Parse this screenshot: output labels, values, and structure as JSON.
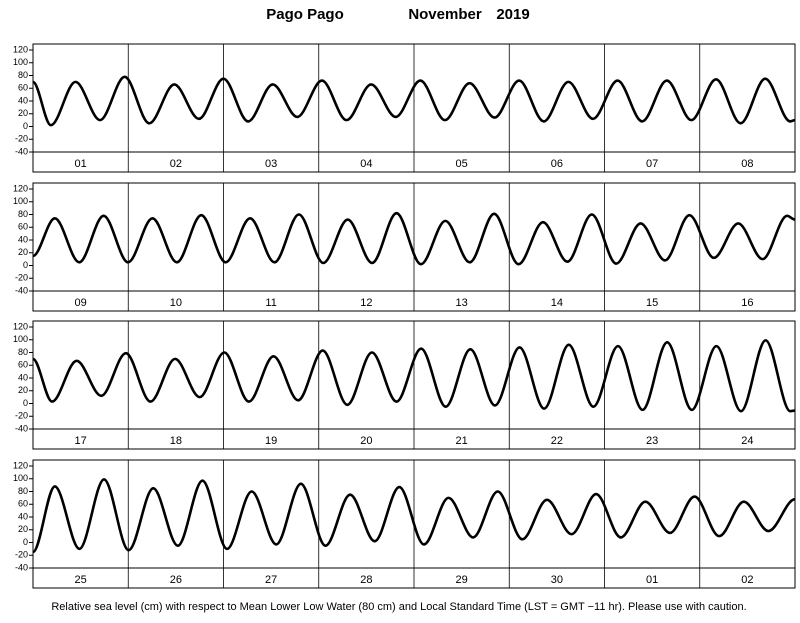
{
  "title": {
    "station": "Pago Pago",
    "month": "November",
    "year": "2019"
  },
  "footnote": "Relative sea level (cm) with respect to Mean Lower Low Water (80 cm) and Local Standard Time (LST = GMT −11 hr). Please use with caution.",
  "chart_data": [
    {
      "type": "line",
      "color": "#000000",
      "categories": [
        "01",
        "02",
        "03",
        "04",
        "05",
        "06",
        "07",
        "08"
      ],
      "x": [
        0,
        4.5,
        10.7,
        16.9,
        23.1,
        29.3,
        35.6,
        41.8,
        48.0,
        54.2,
        60.4,
        66.6,
        72.8,
        79.0,
        85.2,
        91.4,
        97.6,
        103.8,
        110.0,
        116.3,
        122.5,
        128.7,
        134.9,
        141.1,
        147.3,
        153.5,
        159.7,
        165.9,
        172.1,
        178.3,
        184.5,
        190.8,
        192
      ],
      "values": [
        70,
        2,
        70,
        10,
        78,
        5,
        66,
        12,
        75,
        8,
        66,
        15,
        72,
        10,
        66,
        15,
        72,
        10,
        68,
        14,
        72,
        8,
        70,
        12,
        72,
        8,
        72,
        10,
        74,
        5,
        75,
        8,
        10
      ],
      "xlim": [
        0,
        192
      ],
      "ylim": [
        -40,
        120
      ],
      "yticks": [
        -40,
        -20,
        0,
        20,
        40,
        60,
        80,
        100,
        120
      ]
    },
    {
      "type": "line",
      "color": "#000000",
      "categories": [
        "09",
        "10",
        "11",
        "12",
        "13",
        "14",
        "15",
        "16"
      ],
      "x": [
        0,
        5.5,
        11.65,
        17.8,
        23.95,
        30.1,
        36.25,
        42.4,
        48.55,
        54.7,
        60.85,
        67.0,
        73.15,
        79.3,
        85.45,
        91.6,
        97.75,
        103.9,
        110.05,
        116.2,
        122.35,
        128.5,
        134.65,
        140.8,
        146.95,
        153.1,
        159.25,
        165.4,
        171.55,
        177.7,
        183.85,
        190.0,
        192
      ],
      "values": [
        15,
        74,
        5,
        78,
        5,
        74,
        5,
        79,
        5,
        74,
        5,
        80,
        4,
        72,
        4,
        82,
        2,
        70,
        5,
        81,
        2,
        68,
        6,
        80,
        3,
        66,
        8,
        79,
        12,
        66,
        10,
        78,
        72
      ],
      "xlim": [
        0,
        192
      ],
      "ylim": [
        -40,
        120
      ],
      "yticks": [
        -40,
        -20,
        0,
        20,
        40,
        60,
        80,
        100,
        120
      ]
    },
    {
      "type": "line",
      "color": "#000000",
      "categories": [
        "17",
        "18",
        "19",
        "20",
        "21",
        "22",
        "23",
        "24"
      ],
      "x": [
        0,
        4.8,
        11.0,
        17.2,
        23.4,
        29.6,
        35.8,
        42.0,
        48.2,
        54.4,
        60.6,
        66.8,
        73.0,
        79.2,
        85.4,
        91.6,
        97.8,
        104.0,
        110.2,
        116.4,
        122.6,
        128.8,
        135.0,
        141.2,
        147.4,
        153.6,
        159.8,
        166.0,
        172.2,
        178.4,
        184.6,
        190.8,
        192
      ],
      "values": [
        70,
        3,
        67,
        12,
        79,
        3,
        70,
        10,
        80,
        3,
        74,
        5,
        83,
        -2,
        80,
        3,
        86,
        -5,
        85,
        -3,
        88,
        -8,
        92,
        -5,
        90,
        -10,
        96,
        -10,
        90,
        -12,
        99,
        -12,
        -11
      ],
      "xlim": [
        0,
        192
      ],
      "ylim": [
        -40,
        120
      ],
      "yticks": [
        -40,
        -20,
        0,
        20,
        40,
        60,
        80,
        100,
        120
      ]
    },
    {
      "type": "line",
      "color": "#000000",
      "categories": [
        "25",
        "26",
        "27",
        "28",
        "29",
        "30",
        "01",
        "02"
      ],
      "x": [
        0,
        5.5,
        11.7,
        17.9,
        24.1,
        30.3,
        36.5,
        42.7,
        48.9,
        55.1,
        61.3,
        67.5,
        73.7,
        79.9,
        86.1,
        92.3,
        98.5,
        104.7,
        110.9,
        117.1,
        123.3,
        129.5,
        135.7,
        141.9,
        148.1,
        154.3,
        160.5,
        166.7,
        172.9,
        179.1,
        185.3,
        192
      ],
      "values": [
        -15,
        88,
        -10,
        99,
        -12,
        85,
        -5,
        97,
        -10,
        80,
        -3,
        92,
        -5,
        75,
        2,
        87,
        -3,
        70,
        8,
        80,
        5,
        67,
        13,
        76,
        8,
        64,
        15,
        72,
        10,
        64,
        18,
        68
      ],
      "xlim": [
        0,
        192
      ],
      "ylim": [
        -40,
        120
      ],
      "yticks": [
        -40,
        -20,
        0,
        20,
        40,
        60,
        80,
        100,
        120
      ]
    }
  ]
}
